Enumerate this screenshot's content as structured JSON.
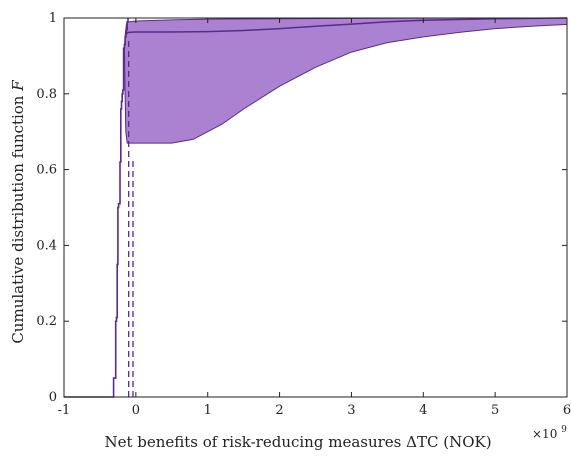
{
  "chart_data": {
    "type": "area",
    "title": "",
    "xlabel": "Net benefits of risk-reducing measures ΔTC (NOK)",
    "ylabel_prefix": "Cumulative distribution function",
    "ylabel_symbol": "F",
    "x_exponent_base": "×10",
    "x_exponent_power": "9",
    "xlim": [
      -1,
      6
    ],
    "ylim": [
      0,
      1
    ],
    "xticks": [
      "-1",
      "0",
      "1",
      "2",
      "3",
      "4",
      "5",
      "6"
    ],
    "yticks": [
      "0",
      "0.2",
      "0.4",
      "0.6",
      "0.8",
      "1"
    ],
    "grid": false,
    "colors": {
      "fill": "#9b6cc9",
      "line": "#5a2a8c",
      "dashed": "#5a2a8c"
    },
    "step_cdf": {
      "x": [
        -0.35,
        -0.31,
        -0.3,
        -0.28,
        -0.27,
        -0.26,
        -0.25,
        -0.24,
        -0.22,
        -0.21,
        -0.2,
        -0.19,
        -0.18,
        -0.17,
        -0.16,
        -0.15,
        -0.14,
        -0.13,
        -0.12,
        -0.11
      ],
      "y": [
        0.0,
        0.05,
        0.05,
        0.2,
        0.21,
        0.35,
        0.5,
        0.51,
        0.62,
        0.76,
        0.78,
        0.8,
        0.81,
        0.92,
        0.93,
        0.95,
        0.96,
        0.97,
        0.99,
        1.0
      ]
    },
    "band_upper": {
      "x": [
        -0.16,
        -0.15,
        -0.14,
        -0.13,
        -0.1,
        0.0,
        0.5,
        1.0,
        2.0,
        3.0,
        4.0,
        5.0,
        6.0
      ],
      "y": [
        0.92,
        0.95,
        0.97,
        0.985,
        0.99,
        0.992,
        0.995,
        0.997,
        0.998,
        0.999,
        1.0,
        1.0,
        1.0
      ]
    },
    "band_lower": {
      "x": [
        -0.16,
        -0.15,
        -0.14,
        -0.12,
        0.0,
        0.5,
        0.8,
        1.0,
        1.2,
        1.5,
        2.0,
        2.5,
        3.0,
        3.5,
        4.0,
        4.5,
        5.0,
        5.5,
        6.0
      ],
      "y": [
        0.92,
        0.8,
        0.7,
        0.67,
        0.67,
        0.67,
        0.68,
        0.7,
        0.72,
        0.76,
        0.82,
        0.87,
        0.91,
        0.935,
        0.95,
        0.962,
        0.972,
        0.978,
        0.983
      ]
    },
    "mid_line": {
      "x": [
        -0.15,
        -0.12,
        -0.1,
        0.0,
        0.5,
        1.0,
        1.5,
        2.0,
        2.5,
        3.0,
        3.5,
        4.0,
        5.0,
        6.0
      ],
      "y": [
        0.955,
        0.96,
        0.962,
        0.963,
        0.963,
        0.964,
        0.967,
        0.972,
        0.978,
        0.984,
        0.99,
        0.994,
        0.998,
        1.0
      ]
    },
    "dashed_lines": [
      {
        "x": -0.1,
        "y0": 0,
        "y1": 0.95
      },
      {
        "x": -0.04,
        "y0": 0,
        "y1": 0.63
      }
    ]
  }
}
